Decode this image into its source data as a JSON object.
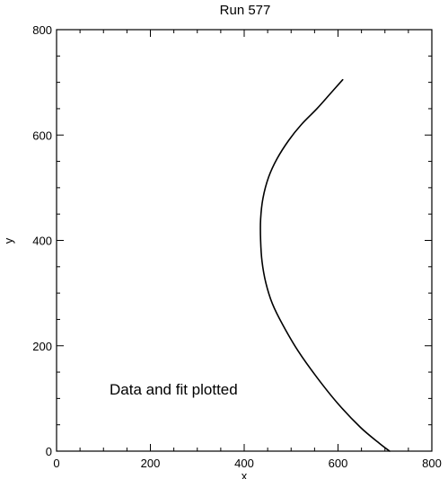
{
  "chart_data": {
    "type": "line",
    "title": "Run 577",
    "xlabel": "x",
    "ylabel": "y",
    "xlim": [
      0,
      800
    ],
    "ylim": [
      0,
      800
    ],
    "x_ticks": [
      0,
      200,
      400,
      600,
      800
    ],
    "y_ticks": [
      0,
      200,
      400,
      600,
      800
    ],
    "x_tick_labels": [
      "0",
      "200",
      "400",
      "600",
      "800"
    ],
    "y_tick_labels": [
      "0",
      "200",
      "400",
      "600",
      "800"
    ],
    "grid": false,
    "annotation": "Data and fit plotted",
    "series": [
      {
        "color": "#000000",
        "x": [
          610,
          585,
          555,
          522,
          495,
          470,
          452,
          440,
          435,
          435,
          438,
          446,
          460,
          482,
          515,
          555,
          600,
          648,
          688,
          710
        ],
        "y": [
          705,
          680,
          650,
          620,
          590,
          555,
          520,
          480,
          440,
          400,
          360,
          320,
          280,
          240,
          190,
          140,
          90,
          45,
          15,
          0
        ]
      }
    ]
  }
}
